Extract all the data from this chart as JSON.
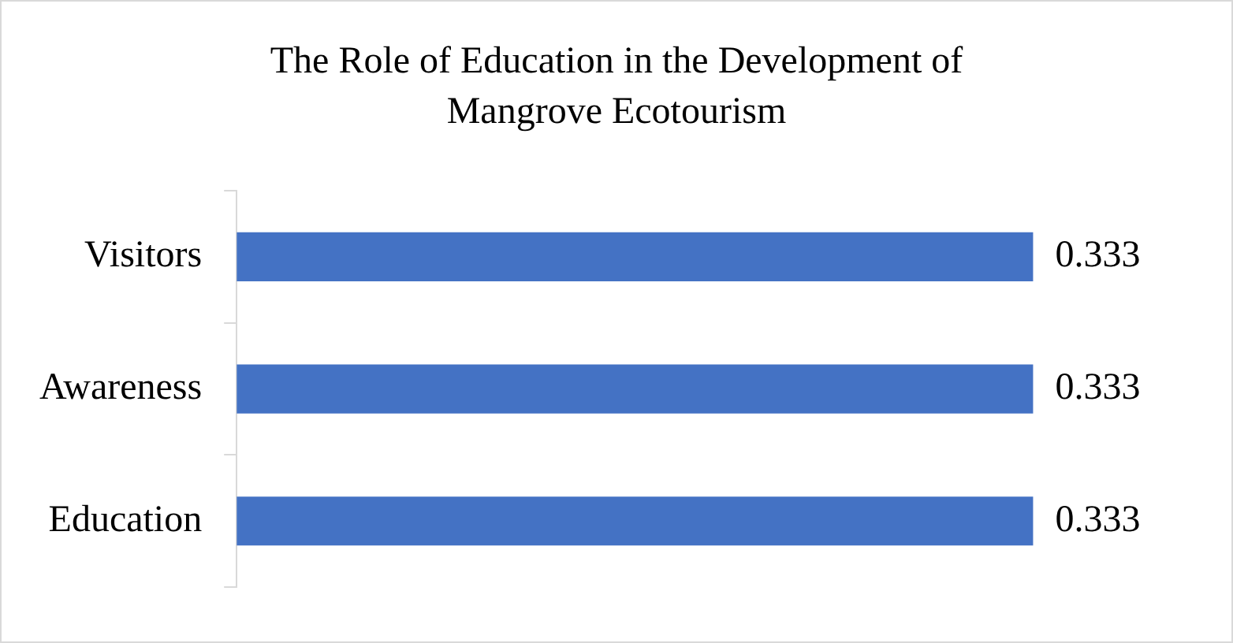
{
  "chart_data": {
    "type": "bar",
    "orientation": "horizontal",
    "title": "The Role of Education in the Development of Mangrove Ecotourism",
    "categories": [
      "Visitors",
      "Awareness",
      "Education"
    ],
    "values": [
      0.333,
      0.333,
      0.333
    ],
    "color": "#4472c4",
    "data_labels": true,
    "legend": false
  }
}
